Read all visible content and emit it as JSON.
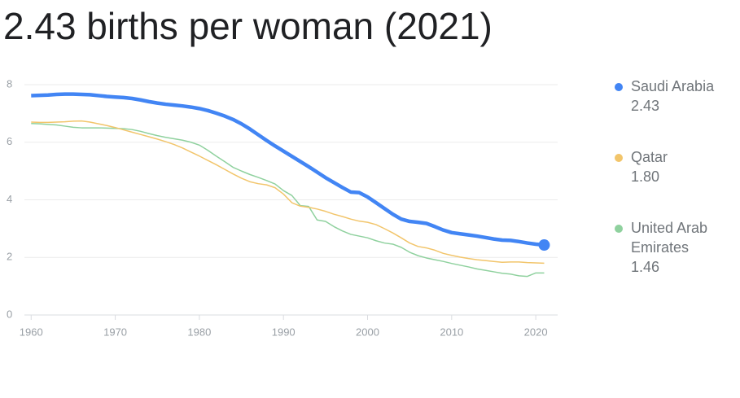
{
  "chart_data": {
    "type": "line",
    "title": "2.43 births per woman (2021)",
    "x": [
      1960,
      1961,
      1962,
      1963,
      1964,
      1965,
      1966,
      1967,
      1968,
      1969,
      1970,
      1971,
      1972,
      1973,
      1974,
      1975,
      1976,
      1977,
      1978,
      1979,
      1980,
      1981,
      1982,
      1983,
      1984,
      1985,
      1986,
      1987,
      1988,
      1989,
      1990,
      1991,
      1992,
      1993,
      1994,
      1995,
      1996,
      1997,
      1998,
      1999,
      2000,
      2001,
      2002,
      2003,
      2004,
      2005,
      2006,
      2007,
      2008,
      2009,
      2010,
      2011,
      2012,
      2013,
      2014,
      2015,
      2016,
      2017,
      2018,
      2019,
      2020,
      2021
    ],
    "series": [
      {
        "name": "Saudi Arabia",
        "color": "#4285f4",
        "latest_label": "2.43",
        "values": [
          7.62,
          7.63,
          7.64,
          7.66,
          7.67,
          7.67,
          7.66,
          7.65,
          7.62,
          7.59,
          7.57,
          7.55,
          7.52,
          7.47,
          7.41,
          7.36,
          7.32,
          7.29,
          7.26,
          7.22,
          7.17,
          7.1,
          7.01,
          6.91,
          6.79,
          6.64,
          6.46,
          6.26,
          6.06,
          5.87,
          5.69,
          5.51,
          5.33,
          5.15,
          4.96,
          4.77,
          4.6,
          4.43,
          4.27,
          4.25,
          4.1,
          3.9,
          3.7,
          3.5,
          3.33,
          3.25,
          3.22,
          3.18,
          3.07,
          2.95,
          2.86,
          2.82,
          2.78,
          2.74,
          2.69,
          2.64,
          2.6,
          2.59,
          2.55,
          2.5,
          2.46,
          2.43
        ]
      },
      {
        "name": "Qatar",
        "color": "#f2c56b",
        "latest_label": "1.80",
        "values": [
          6.7,
          6.69,
          6.69,
          6.7,
          6.71,
          6.73,
          6.74,
          6.7,
          6.64,
          6.58,
          6.51,
          6.43,
          6.35,
          6.27,
          6.19,
          6.11,
          6.02,
          5.92,
          5.8,
          5.66,
          5.52,
          5.37,
          5.22,
          5.06,
          4.9,
          4.75,
          4.63,
          4.56,
          4.52,
          4.42,
          4.2,
          3.9,
          3.78,
          3.74,
          3.68,
          3.6,
          3.5,
          3.42,
          3.33,
          3.26,
          3.22,
          3.14,
          3.0,
          2.85,
          2.68,
          2.5,
          2.38,
          2.33,
          2.25,
          2.14,
          2.07,
          2.01,
          1.96,
          1.92,
          1.89,
          1.86,
          1.83,
          1.84,
          1.84,
          1.82,
          1.81,
          1.8
        ]
      },
      {
        "name": "United Arab Emirates",
        "color": "#8fd19e",
        "latest_label": "1.46",
        "values": [
          6.65,
          6.64,
          6.62,
          6.6,
          6.56,
          6.52,
          6.5,
          6.5,
          6.5,
          6.49,
          6.48,
          6.47,
          6.44,
          6.38,
          6.3,
          6.23,
          6.17,
          6.12,
          6.07,
          6.0,
          5.9,
          5.72,
          5.52,
          5.33,
          5.13,
          5.0,
          4.88,
          4.78,
          4.67,
          4.55,
          4.32,
          4.15,
          3.8,
          3.77,
          3.3,
          3.25,
          3.07,
          2.92,
          2.8,
          2.74,
          2.68,
          2.58,
          2.5,
          2.46,
          2.35,
          2.18,
          2.06,
          1.98,
          1.92,
          1.86,
          1.79,
          1.73,
          1.67,
          1.6,
          1.55,
          1.5,
          1.45,
          1.42,
          1.36,
          1.34,
          1.46,
          1.46
        ]
      }
    ],
    "xlim": [
      1959.2,
      2022.6
    ],
    "ylim": [
      0,
      8
    ],
    "xticks": [
      1960,
      1970,
      1980,
      1990,
      2000,
      2010,
      2020
    ],
    "yticks": [
      0,
      2,
      4,
      6,
      8
    ],
    "grid": true
  }
}
